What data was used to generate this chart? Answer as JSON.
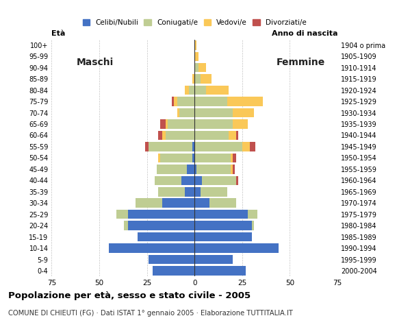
{
  "age_groups": [
    "0-4",
    "5-9",
    "10-14",
    "15-19",
    "20-24",
    "25-29",
    "30-34",
    "35-39",
    "40-44",
    "45-49",
    "50-54",
    "55-59",
    "60-64",
    "65-69",
    "70-74",
    "75-79",
    "80-84",
    "85-89",
    "90-94",
    "95-99",
    "100+"
  ],
  "birth_years": [
    "2000-2004",
    "1995-1999",
    "1990-1994",
    "1985-1989",
    "1980-1984",
    "1975-1979",
    "1970-1974",
    "1965-1969",
    "1960-1964",
    "1955-1959",
    "1950-1954",
    "1945-1949",
    "1940-1944",
    "1935-1939",
    "1930-1934",
    "1925-1929",
    "1920-1924",
    "1915-1919",
    "1910-1914",
    "1905-1909",
    "1904 o prima"
  ],
  "males": {
    "celibe": [
      22,
      24,
      45,
      30,
      35,
      35,
      17,
      5,
      7,
      4,
      1,
      1,
      0,
      0,
      0,
      0,
      0,
      0,
      0,
      0,
      0
    ],
    "coniugato": [
      0,
      0,
      0,
      0,
      2,
      6,
      14,
      14,
      14,
      16,
      17,
      23,
      15,
      14,
      8,
      9,
      3,
      0,
      0,
      0,
      0
    ],
    "vedovo": [
      0,
      0,
      0,
      0,
      0,
      0,
      0,
      0,
      0,
      0,
      1,
      0,
      2,
      1,
      1,
      2,
      2,
      1,
      0,
      0,
      0
    ],
    "divorziato": [
      0,
      0,
      0,
      0,
      0,
      0,
      0,
      0,
      0,
      0,
      0,
      2,
      2,
      3,
      0,
      1,
      0,
      0,
      0,
      0,
      0
    ]
  },
  "females": {
    "nubile": [
      27,
      20,
      44,
      30,
      30,
      28,
      8,
      3,
      4,
      1,
      0,
      0,
      0,
      0,
      0,
      0,
      0,
      0,
      0,
      0,
      0
    ],
    "coniugata": [
      0,
      0,
      0,
      0,
      1,
      5,
      14,
      14,
      18,
      18,
      19,
      25,
      18,
      20,
      20,
      17,
      6,
      3,
      2,
      0,
      0
    ],
    "vedova": [
      0,
      0,
      0,
      0,
      0,
      0,
      0,
      0,
      0,
      1,
      1,
      4,
      4,
      8,
      11,
      19,
      12,
      6,
      4,
      2,
      1
    ],
    "divorziata": [
      0,
      0,
      0,
      0,
      0,
      0,
      0,
      0,
      1,
      1,
      2,
      3,
      1,
      0,
      0,
      0,
      0,
      0,
      0,
      0,
      0
    ]
  },
  "colors": {
    "celibe": "#4472C4",
    "coniugato": "#BFCD93",
    "vedovo": "#FAC858",
    "divorziato": "#C0504D"
  },
  "title": "Popolazione per età, sesso e stato civile - 2005",
  "subtitle": "COMUNE DI CHIEUTI (FG) · Dati ISTAT 1° gennaio 2005 · Elaborazione TUTTITALIA.IT",
  "label_maschi": "Maschi",
  "label_femmine": "Femmine",
  "label_eta": "Età",
  "label_anno": "Anno di nascita",
  "xlim": 75,
  "legend_labels": [
    "Celibi/Nubili",
    "Coniugati/e",
    "Vedovi/e",
    "Divorziati/e"
  ],
  "bg_color": "#FFFFFF",
  "grid_color": "#AAAAAA"
}
